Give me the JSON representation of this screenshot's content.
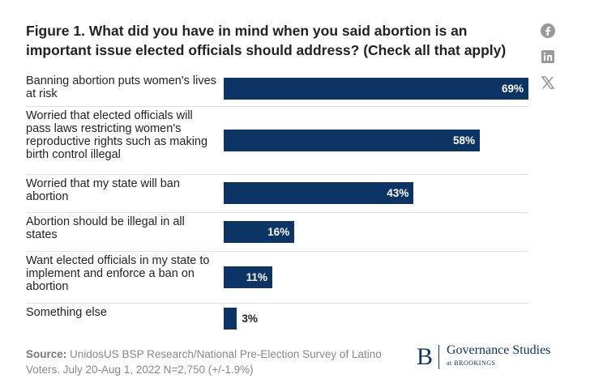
{
  "chart_data": {
    "type": "bar",
    "orientation": "horizontal",
    "title": "Figure 1. What did you have in mind when you said abortion is an important issue elected officials should address? (Check all that apply)",
    "categories": [
      "Banning abortion puts women's lives at risk",
      "Worried that elected officials will pass laws restricting women's reproductive rights such as making birth control illegal",
      "Worried that my state will ban abortion",
      "Abortion should be illegal in all states",
      "Want elected officials in my state to implement and enforce a ban on abortion",
      "Something else"
    ],
    "values": [
      69,
      58,
      43,
      16,
      11,
      3
    ],
    "value_labels": [
      "69%",
      "58%",
      "43%",
      "16%",
      "11%",
      "3%"
    ],
    "color": "#0c3464",
    "source_label": "Source:",
    "source_text": "UnidosUS BSP Research/National Pre-Election Survey of Latino Voters. July 20-Aug 1, 2022 N=2,750 (+/-1.9%)",
    "logo_letter": "B",
    "logo_title": "Governance Studies",
    "logo_subtitle": "at BROOKINGS"
  }
}
